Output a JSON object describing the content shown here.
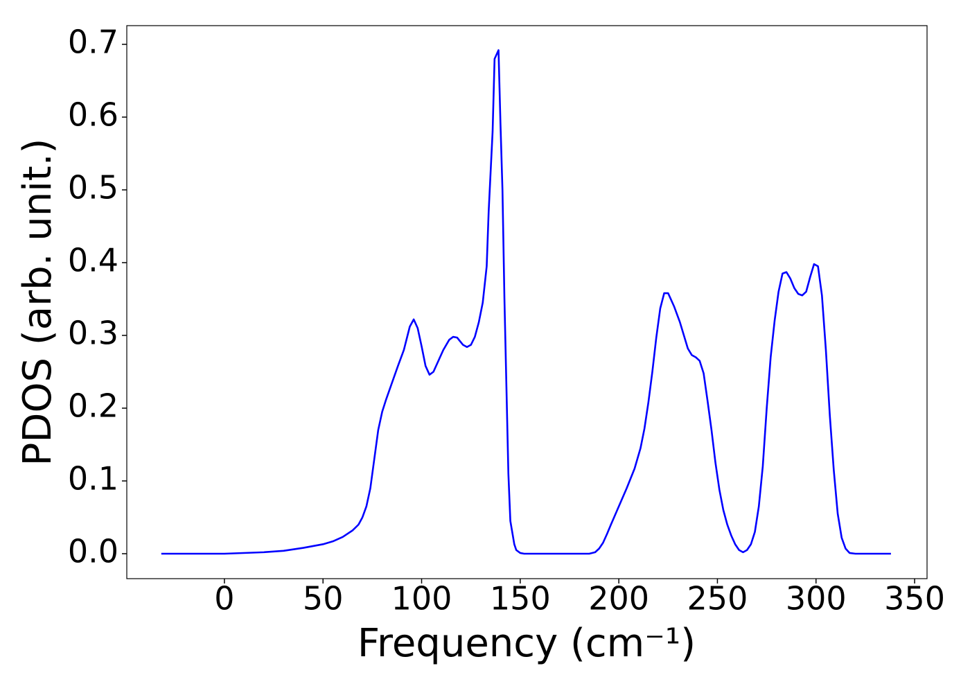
{
  "chart_data": {
    "type": "line",
    "x_label": "Frequency (cm⁻¹)",
    "y_label": "PDOS (arb. unit.)",
    "xlim": [
      -49.5,
      356.3
    ],
    "ylim": [
      -0.0343,
      0.7257
    ],
    "xticks": [
      0,
      50,
      100,
      150,
      200,
      250,
      300,
      350
    ],
    "yticks": [
      {
        "value": 0,
        "label": "0.0"
      },
      0.1,
      0.2,
      0.3,
      0.4,
      0.5,
      0.6,
      0.7
    ],
    "grid": false,
    "x": [
      -32,
      0,
      20,
      30,
      40,
      50,
      55,
      60,
      65,
      68,
      70,
      72,
      74,
      76,
      78,
      80,
      82,
      85,
      88,
      91,
      94,
      96,
      98,
      100,
      102,
      104,
      106,
      108,
      111,
      114,
      116,
      118,
      121,
      123,
      125,
      127,
      129,
      131,
      133,
      134,
      136,
      137,
      139,
      140,
      141,
      142,
      143,
      144,
      145,
      147,
      148,
      150,
      152,
      185,
      188,
      190,
      192,
      194,
      196,
      200,
      204,
      208,
      211,
      213,
      215,
      217,
      219,
      221,
      223,
      225,
      228,
      231,
      233,
      235,
      237,
      239,
      241,
      243,
      245,
      247,
      249,
      251,
      253,
      255,
      257,
      259,
      261,
      263,
      265,
      267,
      269,
      271,
      273,
      275,
      277,
      279,
      281,
      283,
      285,
      287,
      289,
      291,
      293,
      295,
      297,
      299,
      301,
      303,
      305,
      307,
      309,
      311,
      313,
      315,
      317,
      320,
      338
    ],
    "series": [
      {
        "name": "PDOS",
        "color": "#0000ff",
        "values": [
          0,
          0,
          0.002,
          0.004,
          0.008,
          0.013,
          0.017,
          0.023,
          0.032,
          0.04,
          0.05,
          0.065,
          0.09,
          0.13,
          0.17,
          0.195,
          0.212,
          0.235,
          0.258,
          0.28,
          0.312,
          0.322,
          0.31,
          0.285,
          0.258,
          0.246,
          0.25,
          0.262,
          0.28,
          0.294,
          0.298,
          0.297,
          0.287,
          0.284,
          0.287,
          0.298,
          0.318,
          0.345,
          0.395,
          0.47,
          0.58,
          0.68,
          0.692,
          0.59,
          0.5,
          0.35,
          0.23,
          0.11,
          0.045,
          0.013,
          0.005,
          0.001,
          0,
          0,
          0.002,
          0.007,
          0.015,
          0.027,
          0.04,
          0.065,
          0.09,
          0.117,
          0.145,
          0.172,
          0.208,
          0.25,
          0.297,
          0.337,
          0.358,
          0.358,
          0.34,
          0.318,
          0.3,
          0.282,
          0.273,
          0.27,
          0.265,
          0.248,
          0.21,
          0.17,
          0.125,
          0.088,
          0.06,
          0.04,
          0.025,
          0.013,
          0.005,
          0.002,
          0.005,
          0.013,
          0.03,
          0.065,
          0.12,
          0.2,
          0.27,
          0.32,
          0.36,
          0.385,
          0.387,
          0.378,
          0.365,
          0.357,
          0.355,
          0.36,
          0.38,
          0.398,
          0.395,
          0.355,
          0.28,
          0.19,
          0.115,
          0.055,
          0.022,
          0.007,
          0.001,
          0,
          0
        ]
      }
    ]
  }
}
